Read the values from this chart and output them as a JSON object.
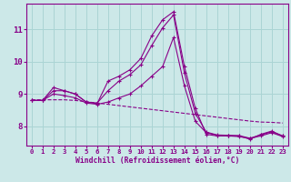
{
  "title": "",
  "xlabel": "Windchill (Refroidissement éolien,°C)",
  "background_color": "#cce8e8",
  "grid_color": "#aad4d4",
  "line_color": "#880088",
  "xlim": [
    -0.5,
    23.5
  ],
  "ylim": [
    7.4,
    11.8
  ],
  "yticks": [
    8,
    9,
    10,
    11
  ],
  "xticks": [
    0,
    1,
    2,
    3,
    4,
    5,
    6,
    7,
    8,
    9,
    10,
    11,
    12,
    13,
    14,
    15,
    16,
    17,
    18,
    19,
    20,
    21,
    22,
    23
  ],
  "series": [
    {
      "y": [
        8.8,
        8.8,
        9.2,
        9.1,
        9.0,
        8.75,
        8.7,
        9.4,
        9.55,
        9.75,
        10.1,
        10.8,
        11.3,
        11.55,
        9.85,
        8.55,
        7.75,
        7.7,
        7.7,
        7.7,
        7.6,
        7.75,
        7.85,
        7.7
      ],
      "marker": "+",
      "linestyle": "-"
    },
    {
      "y": [
        8.8,
        8.8,
        9.1,
        9.1,
        9.0,
        8.75,
        8.72,
        9.1,
        9.4,
        9.6,
        9.9,
        10.5,
        11.05,
        11.45,
        9.65,
        8.4,
        7.82,
        7.73,
        7.72,
        7.71,
        7.63,
        7.73,
        7.83,
        7.7
      ],
      "marker": "+",
      "linestyle": "-"
    },
    {
      "y": [
        8.8,
        8.8,
        9.0,
        8.95,
        8.88,
        8.72,
        8.68,
        8.75,
        8.88,
        9.0,
        9.25,
        9.55,
        9.85,
        10.75,
        9.25,
        8.15,
        7.8,
        7.72,
        7.7,
        7.68,
        7.62,
        7.7,
        7.8,
        7.68
      ],
      "marker": "+",
      "linestyle": "-"
    },
    {
      "y": [
        8.82,
        8.82,
        8.82,
        8.82,
        8.8,
        8.76,
        8.72,
        8.68,
        8.64,
        8.6,
        8.56,
        8.52,
        8.48,
        8.44,
        8.4,
        8.36,
        8.32,
        8.28,
        8.24,
        8.2,
        8.16,
        8.13,
        8.12,
        8.1
      ],
      "marker": null,
      "linestyle": "--"
    }
  ]
}
